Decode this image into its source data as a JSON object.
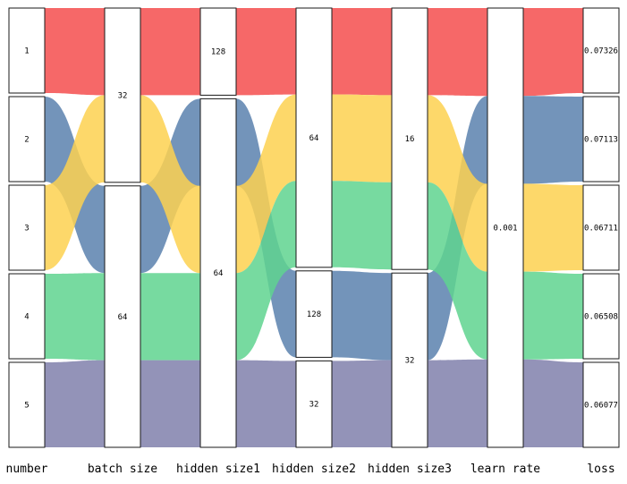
{
  "chart_data": {
    "type": "parallel-sets",
    "axes": [
      "number",
      "batch size",
      "hidden size1",
      "hidden size2",
      "hidden size3",
      "learn rate",
      "loss"
    ],
    "records": [
      {
        "number": "1",
        "batch size": "32",
        "hidden size1": "128",
        "hidden size2": "64",
        "hidden size3": "16",
        "learn rate": "0.001",
        "loss": "0.07326",
        "color": "#f54d4d"
      },
      {
        "number": "2",
        "batch size": "64",
        "hidden size1": "64",
        "hidden size2": "128",
        "hidden size3": "32",
        "learn rate": "0.001",
        "loss": "0.07113",
        "color": "#5b81ae"
      },
      {
        "number": "3",
        "batch size": "32",
        "hidden size1": "64",
        "hidden size2": "64",
        "hidden size3": "16",
        "learn rate": "0.001",
        "loss": "0.06711",
        "color": "#fdd150"
      },
      {
        "number": "4",
        "batch size": "64",
        "hidden size1": "64",
        "hidden size2": "64",
        "hidden size3": "16",
        "learn rate": "0.001",
        "loss": "0.06508",
        "color": "#5fd48f"
      },
      {
        "number": "5",
        "batch size": "64",
        "hidden size1": "64",
        "hidden size2": "32",
        "hidden size3": "32",
        "learn rate": "0.001",
        "loss": "0.06077",
        "color": "#8080ab"
      }
    ],
    "nodes": [
      {
        "axis": "number",
        "values": [
          "1",
          "2",
          "3",
          "4",
          "5"
        ]
      },
      {
        "axis": "batch size",
        "values": [
          "32",
          "64"
        ]
      },
      {
        "axis": "hidden size1",
        "values": [
          "128",
          "64"
        ]
      },
      {
        "axis": "hidden size2",
        "values": [
          "64",
          "128",
          "32"
        ]
      },
      {
        "axis": "hidden size3",
        "values": [
          "16",
          "32"
        ]
      },
      {
        "axis": "learn rate",
        "values": [
          "0.001"
        ]
      },
      {
        "axis": "loss",
        "values": [
          "0.07326",
          "0.07113",
          "0.06711",
          "0.06508",
          "0.06077"
        ]
      }
    ]
  }
}
